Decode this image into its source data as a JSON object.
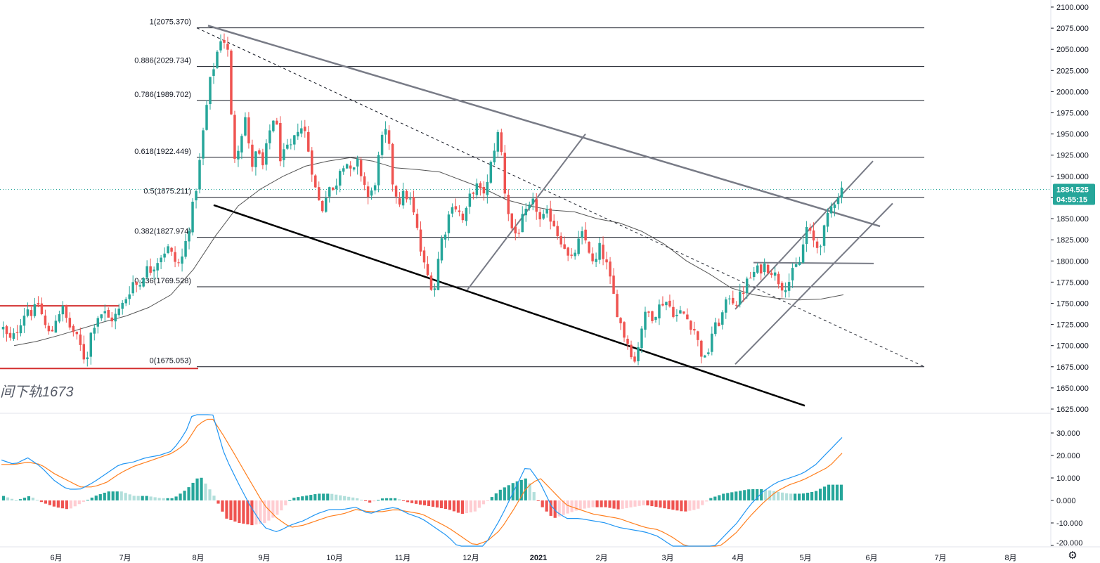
{
  "chart_data": {
    "type": "candlestick",
    "instrument_note": "间下轨1673",
    "price_axis": {
      "ylim": [
        1625,
        2100
      ],
      "ticks": [
        "2100.000",
        "2075.000",
        "2050.000",
        "2025.000",
        "2000.000",
        "1975.000",
        "1950.000",
        "1925.000",
        "1900.000",
        "1875.000",
        "1850.000",
        "1825.000",
        "1800.000",
        "1775.000",
        "1750.000",
        "1725.000",
        "1700.000",
        "1675.000",
        "1650.000",
        "1625.000"
      ]
    },
    "time_axis": {
      "ticks": [
        "6月",
        "7月",
        "8月",
        "9月",
        "10月",
        "11月",
        "12月",
        "2021",
        "2月",
        "3月",
        "4月",
        "5月",
        "6月",
        "7月",
        "8月"
      ]
    },
    "last_price": {
      "value": 1884.525,
      "label": "1884.525",
      "countdown": "04:55:15",
      "color": "#26a69a"
    },
    "fibonacci": [
      {
        "label": "1(2075.370)",
        "price": 2075.37
      },
      {
        "label": "0.886(2029.734)",
        "price": 2029.734
      },
      {
        "label": "0.786(1989.702)",
        "price": 1989.702
      },
      {
        "label": "0.618(1922.449)",
        "price": 1922.449
      },
      {
        "label": "0.5(1875.211)",
        "price": 1875.211
      },
      {
        "label": "0.382(1827.974)",
        "price": 1827.974
      },
      {
        "label": "0.236(1769.528)",
        "price": 1769.528
      },
      {
        "label": "0(1675.053)",
        "price": 1675.053
      }
    ],
    "red_support_levels": [
      1747,
      1673
    ],
    "ohlc_anchor_path": [
      1720,
      1705,
      1712,
      1730,
      1745,
      1738,
      1750,
      1725,
      1710,
      1735,
      1745,
      1725,
      1715,
      1700,
      1680,
      1720,
      1735,
      1740,
      1730,
      1735,
      1745,
      1760,
      1775,
      1770,
      1790,
      1790,
      1800,
      1810,
      1815,
      1800,
      1795,
      1825,
      1860,
      1900,
      1960,
      2010,
      2040,
      2068,
      2050,
      1920,
      1940,
      1970,
      1910,
      1930,
      1910,
      1950,
      1975,
      1920,
      1930,
      1935,
      1960,
      1955,
      1920,
      1880,
      1860,
      1890,
      1880,
      1910,
      1920,
      1900,
      1915,
      1895,
      1870,
      1895,
      1940,
      1955,
      1890,
      1870,
      1880,
      1870,
      1840,
      1800,
      1780,
      1765,
      1820,
      1840,
      1870,
      1860,
      1845,
      1875,
      1890,
      1878,
      1890,
      1930,
      1955,
      1880,
      1840,
      1830,
      1850,
      1860,
      1870,
      1845,
      1855,
      1850,
      1830,
      1820,
      1795,
      1815,
      1830,
      1820,
      1790,
      1815,
      1800,
      1770,
      1740,
      1715,
      1700,
      1680,
      1720,
      1740,
      1735,
      1745,
      1755,
      1745,
      1735,
      1740,
      1730,
      1720,
      1695,
      1680,
      1715,
      1725,
      1740,
      1760,
      1750,
      1760,
      1775,
      1785,
      1790,
      1795,
      1790,
      1780,
      1770,
      1775,
      1790,
      1800,
      1840,
      1825,
      1815,
      1835,
      1860,
      1875,
      1885
    ],
    "moving_average": [
      1700,
      1705,
      1712,
      1720,
      1728,
      1735,
      1745,
      1760,
      1790,
      1830,
      1865,
      1885,
      1900,
      1912,
      1918,
      1922,
      1918,
      1910,
      1908,
      1905,
      1895,
      1885,
      1872,
      1865,
      1860,
      1858,
      1850,
      1845,
      1835,
      1820,
      1800,
      1785,
      1768,
      1760,
      1756,
      1754,
      1755,
      1760
    ],
    "macd": {
      "ylim": [
        -21,
        33
      ],
      "ticks": [
        "30.000",
        "20.000",
        "10.000",
        "0.000",
        "-10.000",
        "-20.000"
      ],
      "dif_anchor_path": [
        18,
        16,
        19,
        15,
        9,
        5,
        5,
        8,
        12,
        16,
        17,
        19,
        20,
        22,
        30,
        45,
        40,
        20,
        8,
        -3,
        -12,
        -14,
        -11,
        -9,
        -6,
        -4,
        -4,
        -3,
        -6,
        -4,
        -3,
        -6,
        -8,
        -12,
        -16,
        -22,
        -25,
        -18,
        -8,
        4,
        16,
        8,
        -4,
        -8,
        -8,
        -9,
        -10,
        -12,
        -13,
        -14,
        -16,
        -20,
        -25,
        -28,
        -22,
        -16,
        -10,
        -2,
        4,
        8,
        10,
        12,
        16,
        22,
        28
      ],
      "dea_anchor_path": [
        16,
        16,
        17,
        16,
        12,
        9,
        6,
        6,
        8,
        12,
        15,
        17,
        19,
        21,
        25,
        34,
        37,
        28,
        18,
        8,
        -2,
        -8,
        -12,
        -11,
        -9,
        -7,
        -6,
        -4,
        -5,
        -5,
        -4,
        -5,
        -6,
        -9,
        -12,
        -16,
        -20,
        -18,
        -13,
        -4,
        6,
        10,
        4,
        -2,
        -4,
        -6,
        -7,
        -8,
        -10,
        -12,
        -13,
        -16,
        -20,
        -24,
        -23,
        -19,
        -14,
        -7,
        -1,
        4,
        7,
        9,
        12,
        15,
        21
      ],
      "dif_color": "#2196f3",
      "dea_color": "#ff7f1e",
      "hist_up_strong": "#26a69a",
      "hist_up_weak": "#b2dfdb",
      "hist_down_strong": "#ef5350",
      "hist_down_weak": "#ffcdd2"
    },
    "colors": {
      "up": "#26a69a",
      "down": "#ef5350",
      "fib_line": "#131722",
      "trendline_gray": "#787b86",
      "trendline_black": "#000000",
      "red_level": "#d32f2f",
      "ma_line": "#555555"
    }
  }
}
